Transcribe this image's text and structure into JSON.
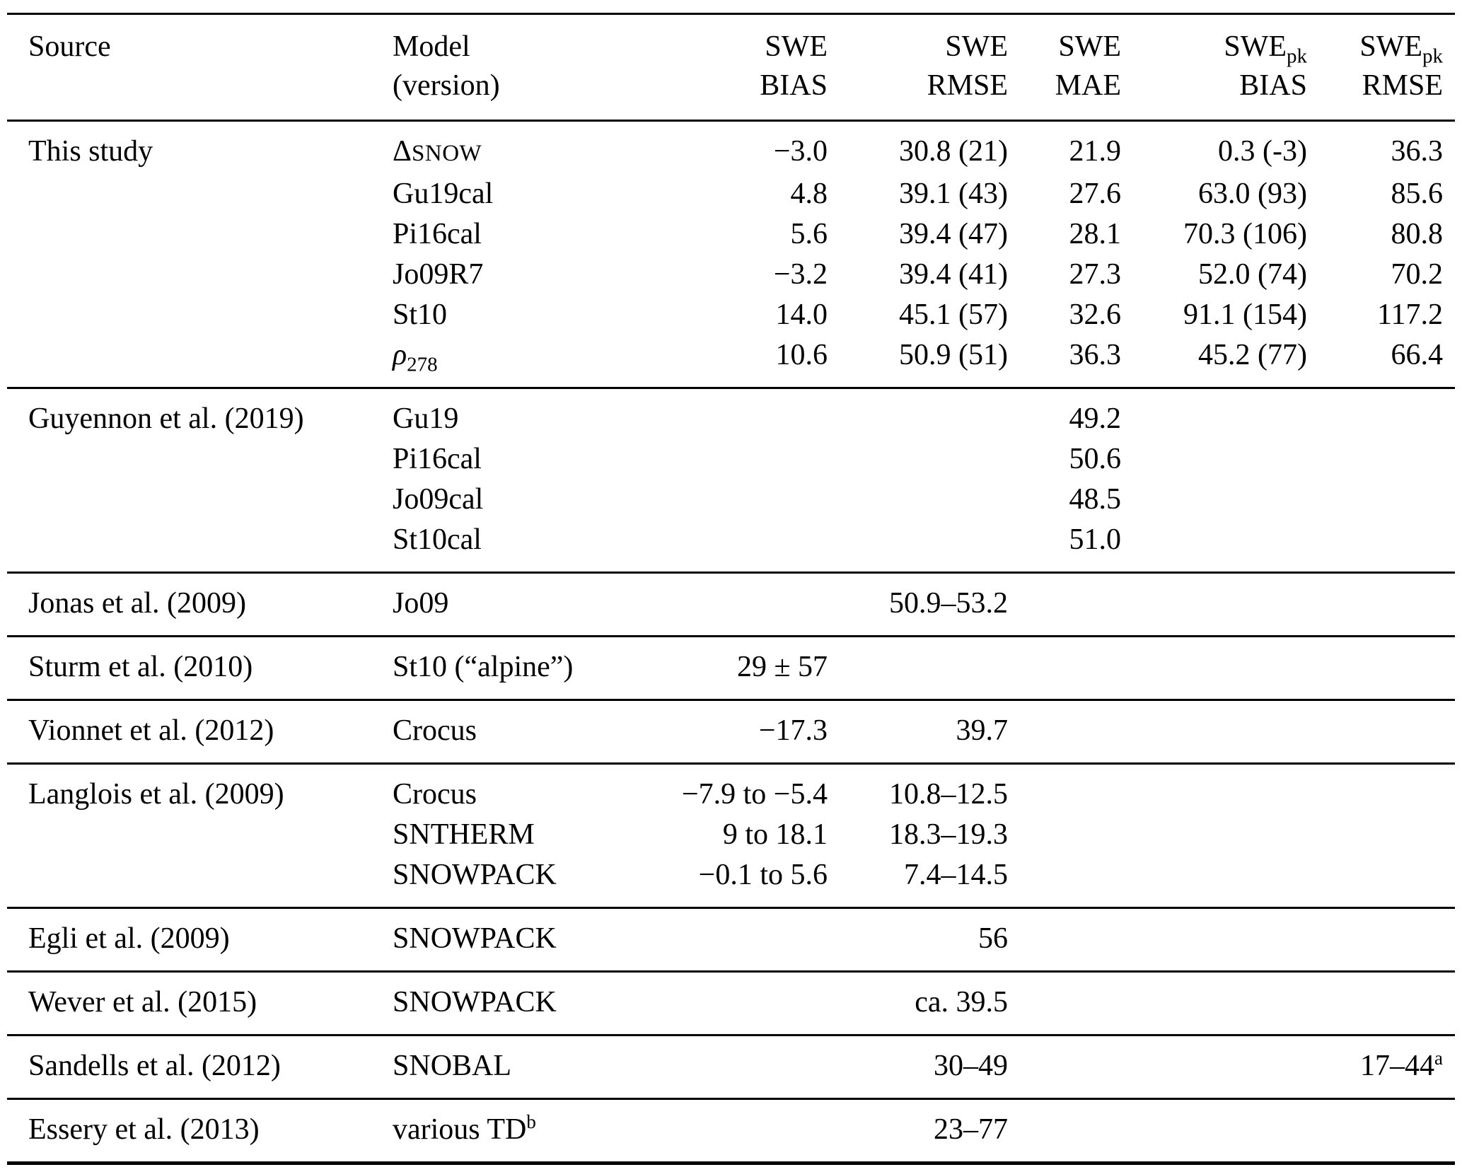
{
  "table": {
    "columns": [
      {
        "key": "source",
        "align": "left",
        "lines": [
          [
            "Source"
          ]
        ]
      },
      {
        "key": "model",
        "align": "left",
        "lines": [
          [
            "Model"
          ],
          [
            "(version)"
          ]
        ]
      },
      {
        "key": "swe_bias",
        "align": "right",
        "lines": [
          [
            "SWE"
          ],
          [
            "BIAS"
          ]
        ]
      },
      {
        "key": "swe_rmse",
        "align": "right",
        "lines": [
          [
            "SWE"
          ],
          [
            "RMSE"
          ]
        ]
      },
      {
        "key": "swe_mae",
        "align": "right",
        "lines": [
          [
            "SWE"
          ],
          [
            "MAE"
          ]
        ]
      },
      {
        "key": "swepk_bias",
        "align": "right",
        "lines": [
          [
            "SWE",
            {
              "sub": "pk"
            }
          ],
          [
            "BIAS"
          ]
        ]
      },
      {
        "key": "swepk_rmse",
        "align": "right",
        "lines": [
          [
            "SWE",
            {
              "sub": "pk"
            }
          ],
          [
            "RMSE"
          ]
        ]
      }
    ],
    "sections": [
      {
        "source": "This study",
        "rows": [
          {
            "model": [
              "Δ",
              {
                "sc": "SNOW"
              }
            ],
            "swe_bias": "−3.0",
            "swe_rmse": "30.8 (21)",
            "swe_mae": "21.9",
            "swepk_bias": "0.3 (-3)",
            "swepk_rmse": "36.3"
          },
          {
            "model": "Gu19cal",
            "swe_bias": "4.8",
            "swe_rmse": "39.1 (43)",
            "swe_mae": "27.6",
            "swepk_bias": "63.0 (93)",
            "swepk_rmse": "85.6"
          },
          {
            "model": "Pi16cal",
            "swe_bias": "5.6",
            "swe_rmse": "39.4 (47)",
            "swe_mae": "28.1",
            "swepk_bias": "70.3 (106)",
            "swepk_rmse": "80.8"
          },
          {
            "model": "Jo09R7",
            "swe_bias": "−3.2",
            "swe_rmse": "39.4 (41)",
            "swe_mae": "27.3",
            "swepk_bias": "52.0 (74)",
            "swepk_rmse": "70.2"
          },
          {
            "model": "St10",
            "swe_bias": "14.0",
            "swe_rmse": "45.1 (57)",
            "swe_mae": "32.6",
            "swepk_bias": "91.1 (154)",
            "swepk_rmse": "117.2"
          },
          {
            "model": [
              {
                "i": "ρ"
              },
              {
                "sub": "278"
              }
            ],
            "swe_bias": "10.6",
            "swe_rmse": "50.9 (51)",
            "swe_mae": "36.3",
            "swepk_bias": "45.2 (77)",
            "swepk_rmse": "66.4"
          }
        ]
      },
      {
        "source": "Guyennon et al. (2019)",
        "rows": [
          {
            "model": "Gu19",
            "swe_bias": "",
            "swe_rmse": "",
            "swe_mae": "49.2",
            "swepk_bias": "",
            "swepk_rmse": ""
          },
          {
            "model": "Pi16cal",
            "swe_bias": "",
            "swe_rmse": "",
            "swe_mae": "50.6",
            "swepk_bias": "",
            "swepk_rmse": ""
          },
          {
            "model": "Jo09cal",
            "swe_bias": "",
            "swe_rmse": "",
            "swe_mae": "48.5",
            "swepk_bias": "",
            "swepk_rmse": ""
          },
          {
            "model": "St10cal",
            "swe_bias": "",
            "swe_rmse": "",
            "swe_mae": "51.0",
            "swepk_bias": "",
            "swepk_rmse": ""
          }
        ]
      },
      {
        "source": "Jonas et al. (2009)",
        "rows": [
          {
            "model": "Jo09",
            "swe_bias": "",
            "swe_rmse": "50.9–53.2",
            "swe_mae": "",
            "swepk_bias": "",
            "swepk_rmse": ""
          }
        ]
      },
      {
        "source": "Sturm et al. (2010)",
        "rows": [
          {
            "model": "St10 (“alpine”)",
            "swe_bias": "29 ± 57",
            "swe_rmse": "",
            "swe_mae": "",
            "swepk_bias": "",
            "swepk_rmse": ""
          }
        ]
      },
      {
        "source": "Vionnet et al. (2012)",
        "rows": [
          {
            "model": "Crocus",
            "swe_bias": "−17.3",
            "swe_rmse": "39.7",
            "swe_mae": "",
            "swepk_bias": "",
            "swepk_rmse": ""
          }
        ]
      },
      {
        "source": "Langlois et al. (2009)",
        "rows": [
          {
            "model": "Crocus",
            "swe_bias": "−7.9 to −5.4",
            "swe_rmse": "10.8–12.5",
            "swe_mae": "",
            "swepk_bias": "",
            "swepk_rmse": ""
          },
          {
            "model": "SNTHERM",
            "swe_bias": "9 to 18.1",
            "swe_rmse": "18.3–19.3",
            "swe_mae": "",
            "swepk_bias": "",
            "swepk_rmse": ""
          },
          {
            "model": "SNOWPACK",
            "swe_bias": "−0.1 to 5.6",
            "swe_rmse": "7.4–14.5",
            "swe_mae": "",
            "swepk_bias": "",
            "swepk_rmse": ""
          }
        ]
      },
      {
        "source": "Egli et al. (2009)",
        "rows": [
          {
            "model": "SNOWPACK",
            "swe_bias": "",
            "swe_rmse": "56",
            "swe_mae": "",
            "swepk_bias": "",
            "swepk_rmse": ""
          }
        ]
      },
      {
        "source": "Wever et al. (2015)",
        "rows": [
          {
            "model": "SNOWPACK",
            "swe_bias": "",
            "swe_rmse": "ca. 39.5",
            "swe_mae": "",
            "swepk_bias": "",
            "swepk_rmse": ""
          }
        ]
      },
      {
        "source": "Sandells et al. (2012)",
        "rows": [
          {
            "model": "SNOBAL",
            "swe_bias": "",
            "swe_rmse": "30–49",
            "swe_mae": "",
            "swepk_bias": "",
            "swepk_rmse": [
              "17–44",
              {
                "sup": "a"
              }
            ]
          }
        ]
      },
      {
        "source": "Essery et al. (2013)",
        "rows": [
          {
            "model": [
              "various TD",
              {
                "sup": "b"
              }
            ],
            "swe_bias": "",
            "swe_rmse": "23–77",
            "swe_mae": "",
            "swepk_bias": "",
            "swepk_rmse": ""
          }
        ]
      }
    ]
  }
}
